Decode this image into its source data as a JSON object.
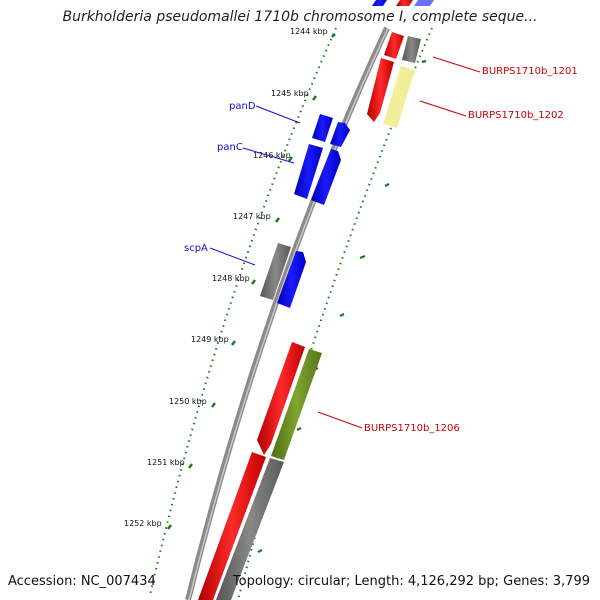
{
  "title": "Burkholderia pseudomallei 1710b chromosome I, complete seque...",
  "footer": {
    "accession": "Accession: NC_007434",
    "summary": "Topology: circular; Length: 4,126,292 bp; Genes: 3,799"
  },
  "ruler": {
    "labels": [
      "1244 kbp",
      "1245 kbp",
      "1246 kbp",
      "1247 kbp",
      "1248 kbp",
      "1249 kbp",
      "1250 kbp",
      "1251 kbp",
      "1252 kbp"
    ]
  },
  "genes": {
    "pand": "panD",
    "panc": "panC",
    "scpa": "scpA",
    "burps1201": "BURPS1710b_1201",
    "burps1202": "BURPS1710b_1202",
    "burps1206": "BURPS1710b_1206"
  },
  "colors": {
    "backbone": "#8a8a8a",
    "forward_cds": "#1010ee",
    "reverse_cds": "#ee1111",
    "pseudo": "#6e6e6e",
    "yellow_feature": "#f2ee9a",
    "olive_feature": "#6b8e23",
    "tick": "#1d7a1d",
    "left_label": "#1010cc",
    "right_label": "#cc0000"
  }
}
